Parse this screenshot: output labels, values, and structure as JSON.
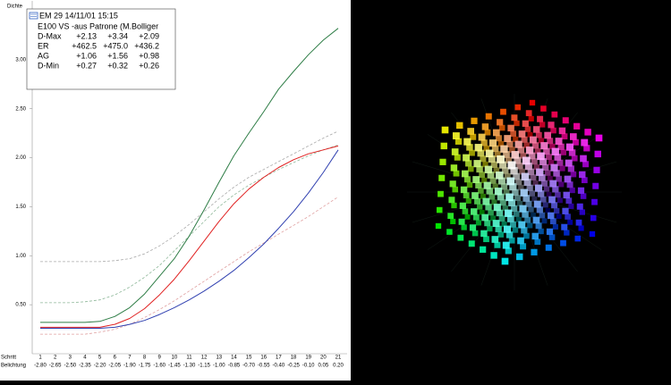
{
  "chart_data": {
    "type": "line",
    "y_label": "Dichte",
    "x_label": "Schritt",
    "x2_label": "Belichtung",
    "categories": [
      "1",
      "2",
      "3",
      "4",
      "5",
      "6",
      "7",
      "8",
      "9",
      "10",
      "11",
      "12",
      "13",
      "14",
      "15",
      "16",
      "17",
      "18",
      "19",
      "20",
      "21"
    ],
    "exposure_labels": [
      "-2.80",
      "-2.65",
      "-2.50",
      "-2.35",
      "-2.20",
      "-2.05",
      "-1.90",
      "-1.75",
      "-1.60",
      "-1.45",
      "-1.30",
      "-1.15",
      "-1.00",
      "-0.85",
      "-0.70",
      "-0.55",
      "-0.40",
      "-0.25",
      "-0.10",
      "0.05",
      "0.20"
    ],
    "ylim": [
      0,
      3.6
    ],
    "yticks": [
      {
        "value": 0.5,
        "label": "0.50"
      },
      {
        "value": 1,
        "label": "1.00"
      },
      {
        "value": 1.5,
        "label": "1.50"
      },
      {
        "value": 2,
        "label": "2.00"
      },
      {
        "value": 2.5,
        "label": "2.50"
      },
      {
        "value": 3,
        "label": "3.00"
      }
    ],
    "series": [
      {
        "color": "#aaaaaa",
        "dashed": true,
        "values": [
          0.94,
          0.94,
          0.94,
          0.94,
          0.94,
          0.95,
          0.97,
          1.02,
          1.1,
          1.2,
          1.32,
          1.45,
          1.58,
          1.7,
          1.8,
          1.88,
          1.96,
          2.04,
          2.12,
          2.2,
          2.27
        ]
      },
      {
        "color": "#8fb89a",
        "dashed": true,
        "values": [
          0.52,
          0.52,
          0.52,
          0.53,
          0.55,
          0.6,
          0.68,
          0.78,
          0.9,
          1.05,
          1.2,
          1.35,
          1.5,
          1.62,
          1.72,
          1.8,
          1.88,
          1.95,
          2.02,
          2.08,
          2.13
        ]
      },
      {
        "color": "#e0a0a0",
        "dashed": true,
        "values": [
          0.2,
          0.2,
          0.2,
          0.2,
          0.22,
          0.25,
          0.3,
          0.37,
          0.45,
          0.54,
          0.64,
          0.74,
          0.84,
          0.94,
          1.04,
          1.13,
          1.22,
          1.31,
          1.4,
          1.5,
          1.6
        ]
      },
      {
        "color": "#2e7d46",
        "dashed": false,
        "values": [
          0.32,
          0.32,
          0.32,
          0.32,
          0.33,
          0.38,
          0.47,
          0.61,
          0.79,
          0.97,
          1.2,
          1.47,
          1.75,
          2.02,
          2.25,
          2.47,
          2.7,
          2.88,
          3.05,
          3.2,
          3.32
        ]
      },
      {
        "color": "#e02020",
        "dashed": false,
        "values": [
          0.27,
          0.27,
          0.27,
          0.27,
          0.27,
          0.3,
          0.36,
          0.46,
          0.6,
          0.76,
          0.95,
          1.15,
          1.35,
          1.53,
          1.68,
          1.8,
          1.9,
          1.98,
          2.04,
          2.08,
          2.12
        ]
      },
      {
        "color": "#3040b0",
        "dashed": false,
        "values": [
          0.26,
          0.26,
          0.26,
          0.26,
          0.26,
          0.27,
          0.3,
          0.34,
          0.4,
          0.47,
          0.55,
          0.64,
          0.74,
          0.85,
          0.98,
          1.12,
          1.28,
          1.45,
          1.64,
          1.85,
          2.08
        ]
      }
    ],
    "info_box": {
      "line1": "EM 29 14/11/01 15:15",
      "line2": "E100 VS -aus Patrone (M.Bolliger",
      "rows": [
        [
          "D-Max",
          "+2.13",
          "+3.34",
          "+2.09"
        ],
        [
          "ER",
          "+462.5",
          "+475.0",
          "+436.2"
        ],
        [
          "AG",
          "+1.06",
          "+1.56",
          "+0.98"
        ],
        [
          "D-Min",
          "+0.27",
          "+0.32",
          "+0.26"
        ]
      ]
    }
  }
}
